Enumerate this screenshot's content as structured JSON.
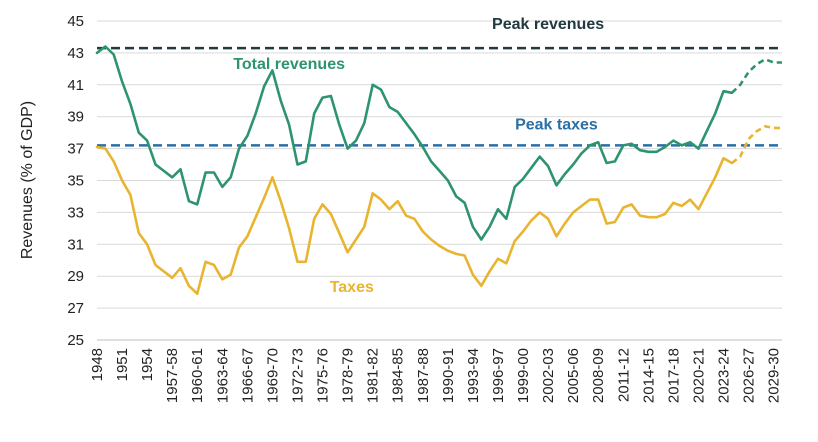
{
  "chart_data": {
    "type": "line",
    "ylabel": "Revenues (% of GDP)",
    "xlabel": "",
    "ylim": [
      25,
      45
    ],
    "yticks": [
      25,
      27,
      29,
      31,
      33,
      35,
      37,
      39,
      41,
      43,
      45
    ],
    "grid": "horizontal",
    "x_tick_labels": [
      "1948",
      "1951",
      "1954",
      "1957-58",
      "1960-61",
      "1963-64",
      "1966-67",
      "1969-70",
      "1972-73",
      "1975-76",
      "1978-79",
      "1981-82",
      "1984-85",
      "1987-88",
      "1990-91",
      "1993-94",
      "1996-97",
      "1999-00",
      "2002-03",
      "2005-06",
      "2008-09",
      "2011-12",
      "2014-15",
      "2017-18",
      "2020-21",
      "2023-24",
      "2026-27",
      "2029-30"
    ],
    "x_tick_indices": [
      0,
      3,
      6,
      9,
      12,
      15,
      18,
      21,
      24,
      27,
      30,
      33,
      36,
      39,
      42,
      45,
      48,
      51,
      54,
      57,
      60,
      63,
      66,
      69,
      72,
      75,
      78,
      81
    ],
    "forecast_start_index": 76,
    "series": [
      {
        "name": "Total revenues",
        "color": "#2E9470",
        "values": [
          43.0,
          43.4,
          42.9,
          41.2,
          39.8,
          38.0,
          37.5,
          36.0,
          35.6,
          35.2,
          35.7,
          33.7,
          33.5,
          35.5,
          35.5,
          34.6,
          35.2,
          37.0,
          37.8,
          39.2,
          40.9,
          41.9,
          40.0,
          38.5,
          36.0,
          36.2,
          39.2,
          40.2,
          40.3,
          38.5,
          37.0,
          37.5,
          38.6,
          41.0,
          40.7,
          39.6,
          39.3,
          38.6,
          37.9,
          37.1,
          36.2,
          35.6,
          35.0,
          34.0,
          33.6,
          32.1,
          31.3,
          32.1,
          33.2,
          32.6,
          34.6,
          35.1,
          35.8,
          36.5,
          35.9,
          34.7,
          35.4,
          36.0,
          36.7,
          37.2,
          37.4,
          36.1,
          36.2,
          37.2,
          37.3,
          36.9,
          36.8,
          36.8,
          37.1,
          37.5,
          37.2,
          37.4,
          37.0,
          38.1,
          39.2,
          40.6,
          40.5,
          41.0,
          41.8,
          42.3,
          42.6,
          42.4,
          42.4
        ]
      },
      {
        "name": "Taxes",
        "color": "#E9B42F",
        "values": [
          37.1,
          37.0,
          36.2,
          35.0,
          34.1,
          31.7,
          31.0,
          29.7,
          29.3,
          28.9,
          29.5,
          28.4,
          27.9,
          29.9,
          29.7,
          28.8,
          29.1,
          30.8,
          31.5,
          32.7,
          33.9,
          35.2,
          33.7,
          32.0,
          29.9,
          29.9,
          32.6,
          33.5,
          32.9,
          31.7,
          30.5,
          31.3,
          32.1,
          34.2,
          33.8,
          33.2,
          33.7,
          32.8,
          32.6,
          31.8,
          31.3,
          30.9,
          30.6,
          30.4,
          30.3,
          29.1,
          28.4,
          29.3,
          30.1,
          29.8,
          31.2,
          31.8,
          32.5,
          33.0,
          32.6,
          31.5,
          32.3,
          33.0,
          33.4,
          33.8,
          33.8,
          32.3,
          32.4,
          33.3,
          33.5,
          32.8,
          32.7,
          32.7,
          32.9,
          33.6,
          33.4,
          33.8,
          33.2,
          34.2,
          35.2,
          36.4,
          36.1,
          36.5,
          37.6,
          38.1,
          38.4,
          38.3,
          38.3
        ]
      }
    ],
    "reference_lines": [
      {
        "name": "Peak revenues",
        "value": 43.3,
        "color": "#203A40"
      },
      {
        "name": "Peak taxes",
        "value": 37.2,
        "color": "#2B6FA5"
      }
    ],
    "annotations": [
      {
        "text": "Peak revenues",
        "color": "#203A40",
        "x_index": 54,
        "y": 44.5
      },
      {
        "text": "Total revenues",
        "color": "#2E9470",
        "x_index": 23,
        "y": 42.0
      },
      {
        "text": "Peak taxes",
        "color": "#2B6FA5",
        "x_index": 55,
        "y": 38.2
      },
      {
        "text": "Taxes",
        "color": "#E9B42F",
        "x_index": 30.5,
        "y": 28.0
      }
    ]
  }
}
